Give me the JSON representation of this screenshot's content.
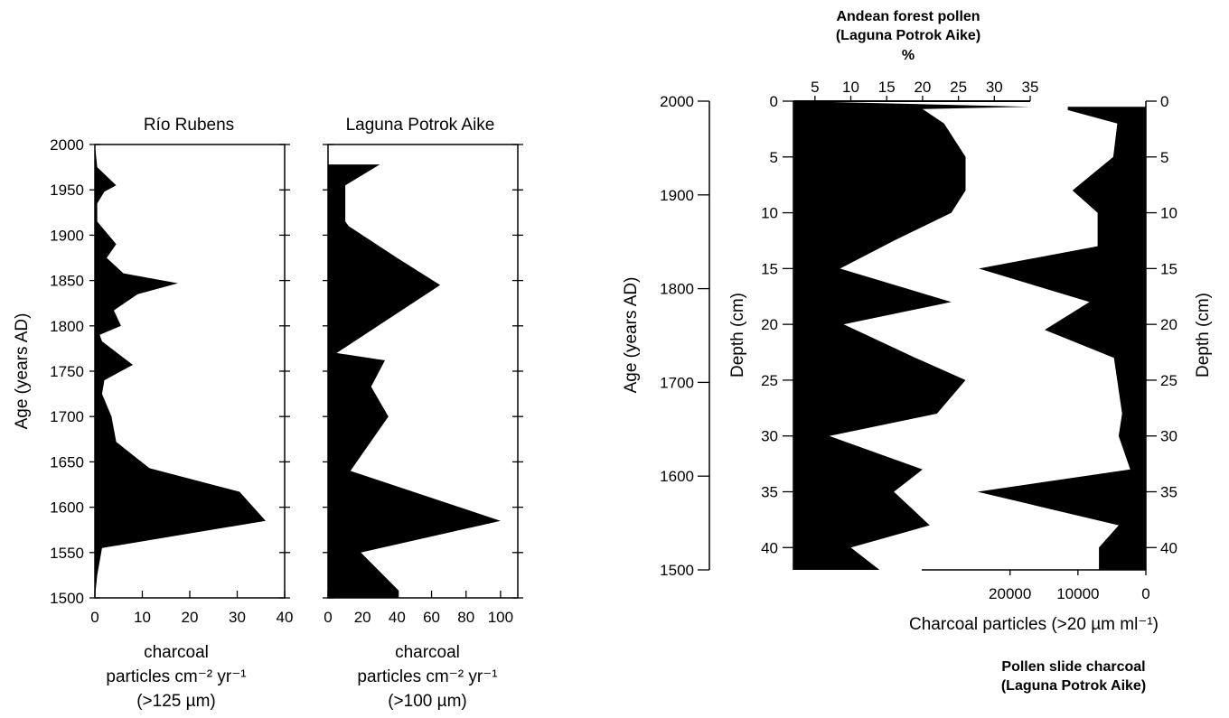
{
  "colors": {
    "fill": "#000000",
    "axis": "#000000",
    "background": "#ffffff"
  },
  "chart_data": [
    {
      "type": "area",
      "title": "Río Rubens",
      "ylabel": "Age (years AD)",
      "xlabel_lines": [
        "charcoal",
        "particles cm⁻² yr⁻¹",
        "(>125 µm)"
      ],
      "xlim": [
        0,
        40
      ],
      "ylim": [
        1500,
        2000
      ],
      "x_ticks": [
        "0",
        "10",
        "20",
        "30",
        "40"
      ],
      "y_ticks": [
        "1500",
        "1550",
        "1600",
        "1650",
        "1700",
        "1750",
        "1800",
        "1850",
        "1900",
        "1950",
        "2000"
      ],
      "points": [
        {
          "age": 2000,
          "value": 0
        },
        {
          "age": 1975,
          "value": 0.5
        },
        {
          "age": 1955,
          "value": 4.5
        },
        {
          "age": 1948,
          "value": 2
        },
        {
          "age": 1935,
          "value": 0.5
        },
        {
          "age": 1915,
          "value": 0.5
        },
        {
          "age": 1890,
          "value": 4.5
        },
        {
          "age": 1875,
          "value": 2.5
        },
        {
          "age": 1858,
          "value": 6
        },
        {
          "age": 1847,
          "value": 17.5
        },
        {
          "age": 1835,
          "value": 9
        },
        {
          "age": 1817,
          "value": 4
        },
        {
          "age": 1800,
          "value": 5.5
        },
        {
          "age": 1790,
          "value": 1
        },
        {
          "age": 1783,
          "value": 1.5
        },
        {
          "age": 1757,
          "value": 8
        },
        {
          "age": 1740,
          "value": 2
        },
        {
          "age": 1725,
          "value": 1.5
        },
        {
          "age": 1700,
          "value": 3.5
        },
        {
          "age": 1672,
          "value": 4.5
        },
        {
          "age": 1643,
          "value": 11.5
        },
        {
          "age": 1617,
          "value": 30.5
        },
        {
          "age": 1585,
          "value": 36
        },
        {
          "age": 1555,
          "value": 1.5
        },
        {
          "age": 1525,
          "value": 0.5
        },
        {
          "age": 1500,
          "value": 0
        }
      ]
    },
    {
      "type": "area",
      "title": "Laguna Potrok Aike",
      "xlabel_lines": [
        "charcoal",
        "particles cm⁻² yr⁻¹",
        "(>100 µm)"
      ],
      "xlim": [
        0,
        110
      ],
      "ylim": [
        1500,
        2000
      ],
      "x_ticks": [
        "0",
        "20",
        "40",
        "60",
        "80",
        "100"
      ],
      "points": [
        {
          "age": 1978,
          "value": 0
        },
        {
          "age": 1978,
          "value": 30
        },
        {
          "age": 1955,
          "value": 10
        },
        {
          "age": 1915,
          "value": 10
        },
        {
          "age": 1910,
          "value": 12
        },
        {
          "age": 1875,
          "value": 40
        },
        {
          "age": 1845,
          "value": 65
        },
        {
          "age": 1770,
          "value": 5
        },
        {
          "age": 1762,
          "value": 33
        },
        {
          "age": 1733,
          "value": 25
        },
        {
          "age": 1700,
          "value": 35
        },
        {
          "age": 1640,
          "value": 13
        },
        {
          "age": 1585,
          "value": 100
        },
        {
          "age": 1550,
          "value": 19
        },
        {
          "age": 1508,
          "value": 41
        },
        {
          "age": 1500,
          "value": 41
        },
        {
          "age": 1500,
          "value": 0
        }
      ]
    },
    {
      "type": "area",
      "title_lines": [
        "Andean forest pollen",
        "(Laguna Potrok Aike)",
        "%"
      ],
      "xlabel": "Charcoal particles (>20 µm ml⁻¹)",
      "ylabel_age": "Age (years AD)",
      "ylabel_depth": "Depth (cm)",
      "bottom_note_lines": [
        "Pollen slide charcoal",
        "(Laguna Potrok Aike)"
      ],
      "age_ticks": [
        "2000",
        "1900",
        "1800",
        "1700",
        "1600",
        "1500"
      ],
      "depth_ticks": [
        "0",
        "5",
        "10",
        "15",
        "20",
        "25",
        "30",
        "35",
        "40"
      ],
      "pollen_ticks": [
        "5",
        "10",
        "15",
        "20",
        "25",
        "30",
        "35"
      ],
      "charcoal_ticks": [
        "20000",
        "10000",
        "0"
      ],
      "pollen_xlim": [
        2,
        35
      ],
      "charcoal_xlim": [
        0,
        33000
      ],
      "depth_lim": [
        0,
        42
      ],
      "age_lim": [
        1500,
        2000
      ],
      "pollen_series": [
        {
          "depth": 0.5,
          "value": 35
        },
        {
          "depth": 0.7,
          "value": 20
        },
        {
          "depth": 2,
          "value": 23
        },
        {
          "depth": 5,
          "value": 26
        },
        {
          "depth": 8,
          "value": 26
        },
        {
          "depth": 10,
          "value": 24
        },
        {
          "depth": 12.5,
          "value": 16
        },
        {
          "depth": 15,
          "value": 8.5
        },
        {
          "depth": 18,
          "value": 24
        },
        {
          "depth": 20,
          "value": 9
        },
        {
          "depth": 23,
          "value": 19
        },
        {
          "depth": 25,
          "value": 26
        },
        {
          "depth": 28,
          "value": 22
        },
        {
          "depth": 30,
          "value": 7
        },
        {
          "depth": 33,
          "value": 20
        },
        {
          "depth": 35,
          "value": 16
        },
        {
          "depth": 38,
          "value": 21
        },
        {
          "depth": 40,
          "value": 10
        },
        {
          "depth": 42,
          "value": 14
        }
      ],
      "charcoal_series": [
        {
          "depth": 0.5,
          "value": 11500
        },
        {
          "depth": 0.8,
          "value": 11500
        },
        {
          "depth": 2,
          "value": 4200
        },
        {
          "depth": 5,
          "value": 4800
        },
        {
          "depth": 8,
          "value": 10800
        },
        {
          "depth": 10,
          "value": 7100
        },
        {
          "depth": 12,
          "value": 7100
        },
        {
          "depth": 13,
          "value": 7100
        },
        {
          "depth": 15,
          "value": 24600
        },
        {
          "depth": 18,
          "value": 8300
        },
        {
          "depth": 20.5,
          "value": 14900
        },
        {
          "depth": 23,
          "value": 4700
        },
        {
          "depth": 28,
          "value": 3500
        },
        {
          "depth": 30,
          "value": 4000
        },
        {
          "depth": 33,
          "value": 2300
        },
        {
          "depth": 35,
          "value": 24800
        },
        {
          "depth": 38,
          "value": 4000
        },
        {
          "depth": 40,
          "value": 6900
        },
        {
          "depth": 42,
          "value": 6900
        }
      ]
    }
  ]
}
